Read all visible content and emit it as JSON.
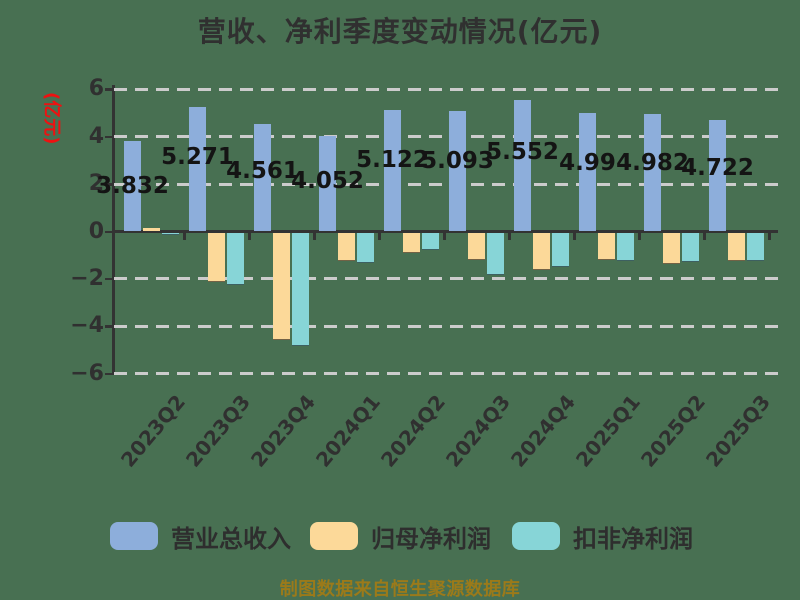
{
  "title": "营收、净利季度变动情况(亿元)",
  "y_axis_label": "(亿元)",
  "footer": "制图数据来自恒生聚源数据库",
  "colors": {
    "background": "#487052",
    "revenue": "#8DAEDB",
    "net_profit": "#FCD999",
    "non_gaap": "#87D5D7",
    "grid": "#CCCCCC",
    "axis": "#333333",
    "title_text": "#303030",
    "ylabel_red": "#EE1111",
    "footer_text": "#9B7A1A",
    "value_label": "#141414"
  },
  "legend": {
    "items": [
      {
        "label": "营业总收入",
        "color_key": "revenue"
      },
      {
        "label": "归母净利润",
        "color_key": "net_profit"
      },
      {
        "label": "扣非净利润",
        "color_key": "non_gaap"
      }
    ]
  },
  "chart_data": {
    "type": "bar",
    "title": "营收、净利季度变动情况(亿元)",
    "ylabel": "(亿元)",
    "categories": [
      "2023Q2",
      "2023Q3",
      "2023Q4",
      "2024Q1",
      "2024Q2",
      "2024Q3",
      "2024Q4",
      "2025Q1",
      "2025Q2",
      "2025Q3"
    ],
    "series": [
      {
        "name": "营业总收入",
        "color_key": "revenue",
        "values": [
          3.832,
          5.271,
          4.561,
          4.052,
          5.122,
          5.093,
          5.552,
          4.99,
          4.982,
          4.722
        ],
        "labels": [
          "3.832",
          "5.271",
          "4.561",
          "4.052",
          "5.122",
          "5.093",
          "5.552",
          "4.99",
          "4.982",
          "4.722"
        ]
      },
      {
        "name": "归母净利润",
        "color_key": "net_profit",
        "values": [
          0.15,
          -2.1,
          -4.55,
          -1.2,
          -0.85,
          -1.15,
          -1.6,
          -1.15,
          -1.35,
          -1.2
        ]
      },
      {
        "name": "扣非净利润",
        "color_key": "non_gaap",
        "values": [
          -0.06,
          -2.2,
          -4.8,
          -1.3,
          -0.75,
          -1.8,
          -1.45,
          -1.2,
          -1.25,
          -1.2
        ]
      }
    ],
    "ylim": [
      -6,
      6
    ],
    "ytick_values": [
      6,
      4,
      2,
      0,
      -2,
      -4,
      -6
    ],
    "ytick_labels": [
      "6",
      "4",
      "2",
      "0",
      "−2",
      "−4",
      "−6"
    ],
    "grid": "horizontal-dashed",
    "legend_position": "bottom"
  }
}
